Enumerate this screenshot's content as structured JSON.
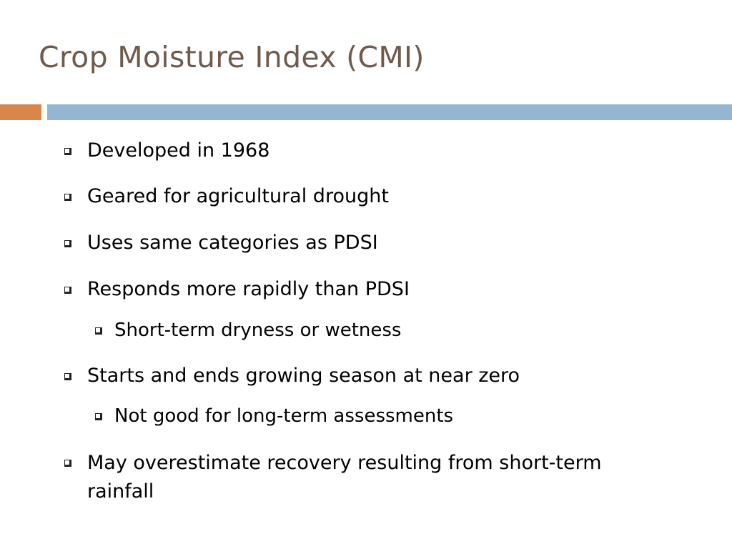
{
  "slide": {
    "title": "Crop Moisture Index (CMI)",
    "colors": {
      "title": "#6e5b4e",
      "accent": "#d9864a",
      "rule": "#94b6d2"
    },
    "bullet_marker": "hollow-square-icon",
    "bullets": [
      {
        "level": 1,
        "text": "Developed in 1968"
      },
      {
        "level": 1,
        "text": "Geared for agricultural drought"
      },
      {
        "level": 1,
        "text": "Uses same categories as PDSI"
      },
      {
        "level": 1,
        "text": "Responds more rapidly than PDSI"
      },
      {
        "level": 2,
        "text": "Short-term dryness or wetness"
      },
      {
        "level": 1,
        "text": "Starts and ends growing season at near zero"
      },
      {
        "level": 2,
        "text": "Not good for long-term assessments"
      },
      {
        "level": 1,
        "text": "May overestimate recovery resulting from short-term rainfall"
      }
    ]
  }
}
